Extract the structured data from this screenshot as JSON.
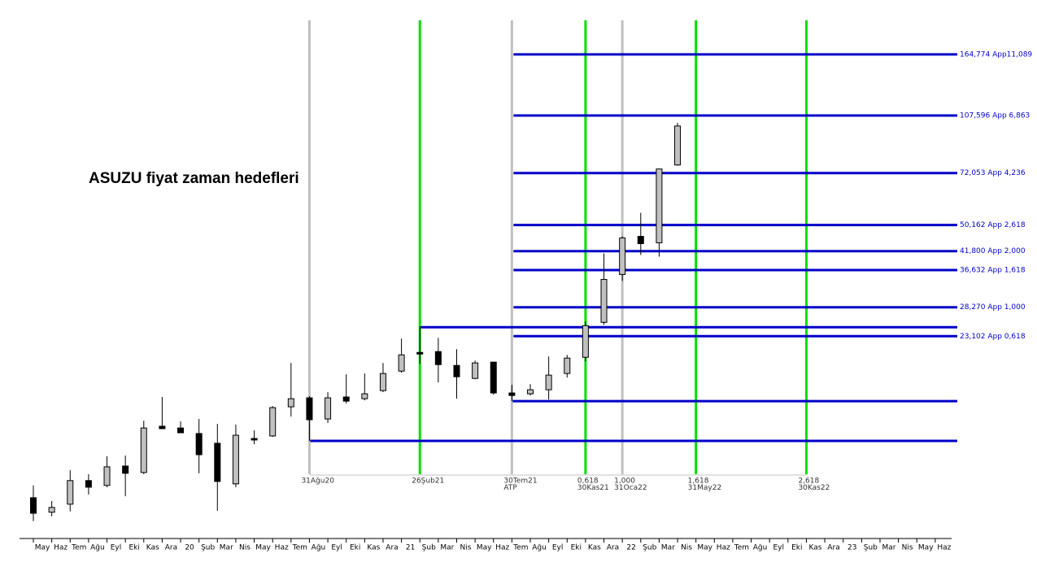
{
  "chart_data": {
    "type": "candlestick",
    "title": "ASUZU fiyat zaman hedefleri",
    "categories": [
      "May",
      "Haz",
      "Tem",
      "Ağu",
      "Eyl",
      "Eki",
      "Kas",
      "Ara",
      "20",
      "Şub",
      "Mar",
      "Nis",
      "May",
      "Haz",
      "Tem",
      "Ağu",
      "Eyl",
      "Eki",
      "Kas",
      "Ara",
      "21",
      "Şub",
      "Mar",
      "Nis",
      "May",
      "Haz",
      "Tem",
      "Ağu",
      "Eyl",
      "Eki",
      "Kas",
      "Ara",
      "22",
      "Şub",
      "Mar",
      "Nis",
      "May",
      "Haz",
      "Tem",
      "Ağu",
      "Eyl",
      "Eki",
      "Kas",
      "Ara",
      "23",
      "Şub",
      "Mar",
      "Nis",
      "May",
      "Haz"
    ],
    "open": [
      7.49,
      6.77,
      7.16,
      8.44,
      8.16,
      9.34,
      8.93,
      12.33,
      12.18,
      11.72,
      10.95,
      8.25,
      11.32,
      11.52,
      14.12,
      15.03,
      12.97,
      15.12,
      14.94,
      15.81,
      18.11,
      20.63,
      20.75,
      18.84,
      17.21,
      19.28,
      15.55,
      15.46,
      15.9,
      17.81,
      19.94,
      25.44,
      35.52,
      46.34,
      44.29,
      76.25,
      null,
      null,
      null,
      null,
      null,
      null,
      null,
      null,
      null,
      null,
      null,
      null,
      null,
      null
    ],
    "high": [
      8.16,
      7.32,
      9.08,
      8.83,
      10.0,
      10.05,
      12.82,
      15.12,
      12.75,
      12.97,
      12.54,
      12.47,
      11.99,
      14.2,
      19.17,
      15.2,
      15.64,
      17.71,
      17.81,
      19.17,
      22.71,
      24.73,
      22.84,
      21.1,
      19.49,
      19.28,
      16.45,
      16.54,
      20.05,
      20.28,
      25.58,
      41.15,
      46.34,
      54.61,
      74.13,
      102.35,
      null,
      null,
      null,
      null,
      null,
      null,
      null,
      null,
      null,
      null,
      null,
      null,
      null,
      null
    ],
    "low": [
      6.36,
      6.58,
      6.81,
      7.66,
      8.06,
      7.57,
      8.83,
      12.12,
      11.78,
      8.88,
      6.84,
      8.06,
      10.88,
      11.45,
      13.19,
      11.13,
      12.61,
      14.44,
      14.77,
      15.64,
      17.9,
      19.06,
      16.73,
      14.94,
      17.11,
      15.37,
      14.69,
      15.28,
      14.86,
      17.31,
      19.38,
      25.01,
      33.95,
      40.68,
      40.23,
      75.82,
      null,
      null,
      null,
      null,
      null,
      null,
      null,
      null,
      null,
      null,
      null,
      null,
      null,
      null
    ],
    "close": [
      6.72,
      7.0,
      8.44,
      8.06,
      9.29,
      8.88,
      12.18,
      12.12,
      11.78,
      10.11,
      8.39,
      11.58,
      11.2,
      14.04,
      14.94,
      12.9,
      15.03,
      14.69,
      15.46,
      17.81,
      20.28,
      20.4,
      18.95,
      17.41,
      19.17,
      15.55,
      15.28,
      15.9,
      17.61,
      19.83,
      24.87,
      34.33,
      45.82,
      44.04,
      74.13,
      100.04,
      null,
      null,
      null,
      null,
      null,
      null,
      null,
      null,
      null,
      null,
      null,
      null,
      null,
      null
    ],
    "up_color": "#c0c0c0",
    "down_color": "#000000",
    "log_scale": true,
    "ylim": [
      5.7,
      209
    ],
    "level_color": "#0000c8",
    "levels": [
      {
        "value": 164.774,
        "label": "164,774 App11,089"
      },
      {
        "value": 107.596,
        "label": "107,596 App 6,863"
      },
      {
        "value": 72.053,
        "label": "72,053 App 4,236"
      },
      {
        "value": 50.162,
        "label": "50,162 App 2,618"
      },
      {
        "value": 41.8,
        "label": "41,800 App 2,000"
      },
      {
        "value": 36.632,
        "label": "36,632 App 1,618"
      },
      {
        "value": 28.27,
        "label": "28,270 App 1,000"
      },
      {
        "value": 23.102,
        "label": "23,102 App 0,618"
      }
    ],
    "unlabeled_levels": [
      24.59,
      14.69,
      11.13
    ],
    "vlines": [
      {
        "label": [
          "31Ağu20"
        ],
        "color": "#c0c0c0"
      },
      {
        "label": [
          "26Şub21"
        ],
        "color": "#00e000"
      },
      {
        "label": [
          "30Tem21",
          "ATP"
        ],
        "color": "#c0c0c0"
      },
      {
        "label": [
          "0,618",
          "30Kas21"
        ],
        "color": "#00e000"
      },
      {
        "label": [
          "1,000",
          "31Oca22"
        ],
        "color": "#c0c0c0"
      },
      {
        "label": [
          "1,618",
          "31May22"
        ],
        "color": "#00e000"
      },
      {
        "label": [
          "2,618",
          "30Kas22"
        ],
        "color": "#00e000"
      }
    ]
  }
}
